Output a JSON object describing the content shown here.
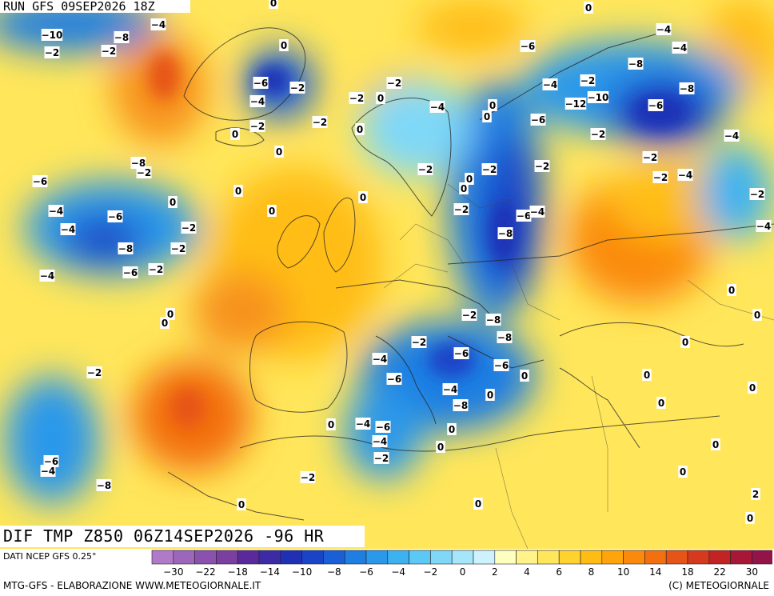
{
  "header": {
    "run_title": "RUN GFS 09SEP2026 18Z"
  },
  "map_title": "DIF TMP Z850 06Z14SEP2026 -96 HR",
  "footer": {
    "data_source": "DATI NCEP GFS 0.25°",
    "credit": "MTG-GFS - ELABORAZIONE WWW.METEOGIORNALE.IT",
    "copyright": "(C) METEOGIORNALE"
  },
  "legend": {
    "colors": [
      "#b07ac8",
      "#9c66bb",
      "#8a52ad",
      "#7a3f9f",
      "#5b2a9a",
      "#3d2ba5",
      "#1f30b5",
      "#1a44c8",
      "#1b5fd6",
      "#1f7ee2",
      "#2b98ea",
      "#3cb2f1",
      "#5bc8f6",
      "#7fd8f8",
      "#a6e6fb",
      "#cdf2fd",
      "#ffffc0",
      "#fff38a",
      "#ffe65a",
      "#ffd22e",
      "#ffbd14",
      "#ffa40a",
      "#fb8a0c",
      "#f37010",
      "#e65417",
      "#d63a1d",
      "#c22424",
      "#a81836",
      "#921449"
    ],
    "tick_labels": [
      "-30",
      "-22",
      "-18",
      "-14",
      "-10",
      "-8",
      "-6",
      "-4",
      "-2",
      "0",
      "2",
      "4",
      "6",
      "8",
      "10",
      "14",
      "18",
      "22",
      "30"
    ],
    "accent_cold": "#1f30b5",
    "accent_warm": "#f37010"
  },
  "map": {
    "chart_data": {
      "type": "contour map",
      "variable": "DIF TMP Z850",
      "contour_labels": [
        "-10",
        "-8",
        "-2",
        "-4",
        "-2",
        "0",
        "-6",
        "-2",
        "-4",
        "-2",
        "0",
        "0",
        "-2",
        "-4",
        "0",
        "0",
        "-2",
        "0",
        "-2",
        "0",
        "-6",
        "-4",
        "-8",
        "-2",
        "-4",
        "-6",
        "-8",
        "-10",
        "-12",
        "-6",
        "-2",
        "-4",
        "-2",
        "-4",
        "-2",
        "-2",
        "0",
        "-2",
        "0",
        "0",
        "-2",
        "-6",
        "-8",
        "-4",
        "-2",
        "-4",
        "-2",
        "-4",
        "0",
        "0",
        "-2",
        "-6",
        "-4",
        "-8",
        "-2",
        "-4",
        "-6",
        "-2",
        "-4",
        "-6",
        "-8",
        "0",
        "0",
        "0",
        "-2",
        "-8",
        "-6",
        "-8",
        "-6",
        "-4",
        "-2",
        "0",
        "-4",
        "-8",
        "-6",
        "-6",
        "-4",
        "-4",
        "0",
        "-2",
        "-2",
        "0",
        "-8",
        "-6",
        "-4",
        "0",
        "-2",
        "0",
        "0",
        "0",
        "0",
        "0",
        "0",
        "0",
        "0",
        "0",
        "0",
        "0",
        "2",
        "0",
        "0",
        "0",
        "-2"
      ]
    }
  }
}
